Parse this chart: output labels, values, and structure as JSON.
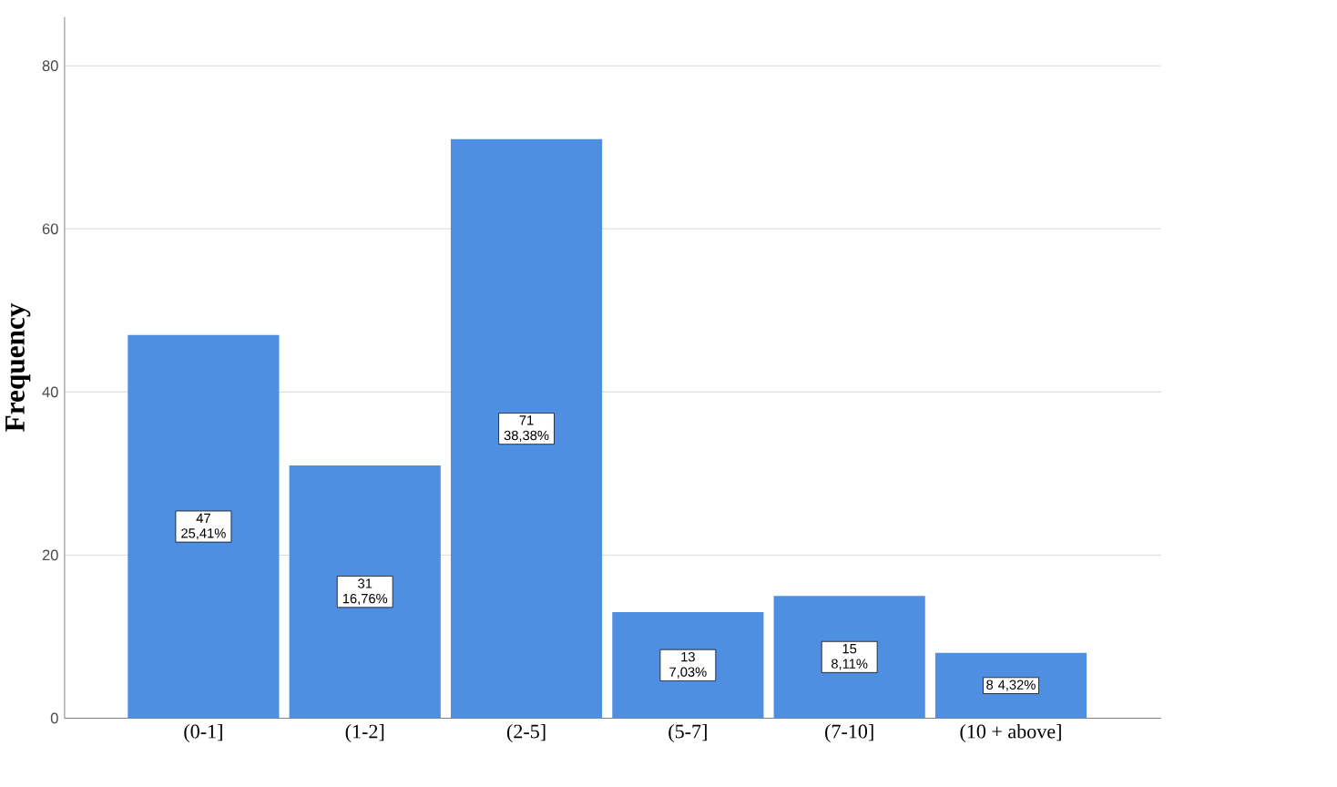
{
  "chart_data": {
    "type": "bar",
    "ylabel": "Frequency",
    "categories": [
      "(0-1]",
      "(1-2]",
      "(2-5]",
      "(5-7]",
      "(7-10]",
      "(10 + above]"
    ],
    "values": [
      47,
      31,
      71,
      13,
      15,
      8
    ],
    "value_labels": [
      "47 25,41%",
      "31 16,76%",
      "71 38,38%",
      "13 7,03%",
      "15 8,11%",
      "8 4,32%"
    ],
    "color": "#4f8fe2",
    "ylim": [
      0,
      86
    ],
    "yticks": [
      0,
      20,
      40,
      60,
      80
    ],
    "grid": "y"
  }
}
